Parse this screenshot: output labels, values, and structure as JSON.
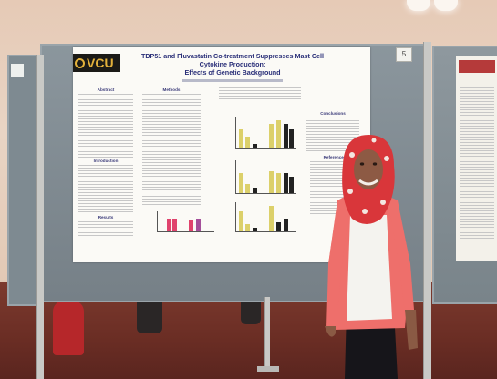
{
  "scene": {
    "description_type": "photo",
    "colors": {
      "wall": "#e9d4c4",
      "carpet": "#6a2d24",
      "board": "#7e8a91",
      "poster": "#fbfaf6",
      "vcu_gold": "#e3b13b",
      "title_blue": "#2a2f78",
      "cardigan": "#ee6f6b",
      "hijab": "#d9363a",
      "bar_yellow": "#dcd06a",
      "bar_pink": "#e0436d"
    }
  },
  "poster": {
    "logo_text": "VCU",
    "title_line1": "TDP51 and Fluvastatin Co-treatment Suppresses Mast Cell",
    "title_line2": "Cytokine Production:",
    "title_line3": "Effects of Genetic Background",
    "headings": {
      "abstract": "Abstract",
      "methods": "Methods",
      "introduction": "Introduction",
      "results": "Results",
      "conclusions": "Conclusions",
      "references": "References"
    }
  },
  "board_note": "5"
}
